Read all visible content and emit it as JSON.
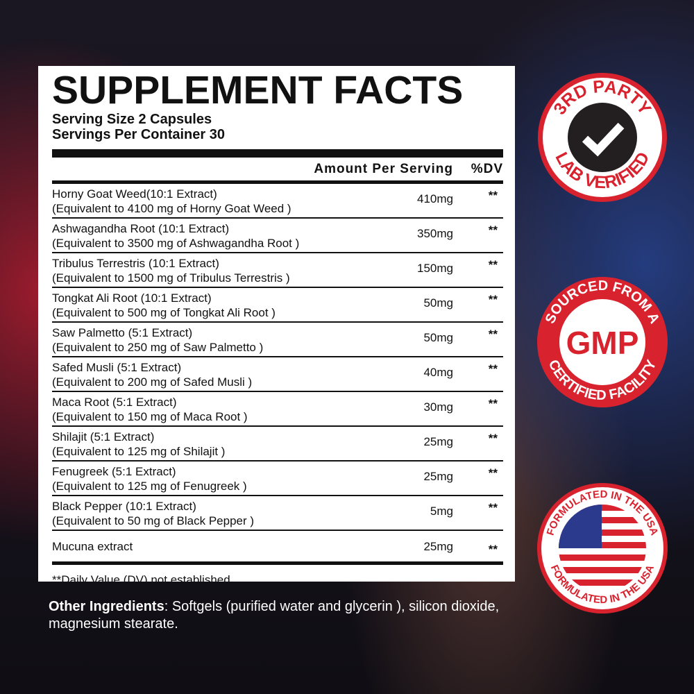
{
  "facts": {
    "title": "SUPPLEMENT FACTS",
    "serving_size": "Serving Size 2 Capsules",
    "servings_per_container": "Servings Per Container 30",
    "header_amount": "Amount Per Serving",
    "header_dv": "%DV",
    "rows": [
      {
        "name": "Horny Goat Weed(10:1 Extract)",
        "equiv": "(Equivalent to 4100 mg of Horny Goat Weed )",
        "amount": "410mg",
        "dv": "**"
      },
      {
        "name": "Ashwagandha Root (10:1 Extract)",
        "equiv": "(Equivalent to 3500 mg of Ashwagandha Root )",
        "amount": "350mg",
        "dv": "**"
      },
      {
        "name": "Tribulus Terrestris (10:1 Extract)",
        "equiv": "(Equivalent to 1500 mg of Tribulus Terrestris )",
        "amount": "150mg",
        "dv": "**"
      },
      {
        "name": "Tongkat Ali Root (10:1 Extract)",
        "equiv": "(Equivalent to 500 mg of Tongkat Ali Root )",
        "amount": "50mg",
        "dv": "**"
      },
      {
        "name": "Saw Palmetto (5:1 Extract)",
        "equiv": "(Equivalent to 250 mg of Saw Palmetto )",
        "amount": "50mg",
        "dv": "**"
      },
      {
        "name": "Safed Musli (5:1 Extract)",
        "equiv": "(Equivalent to 200 mg of Safed Musli )",
        "amount": "40mg",
        "dv": "**"
      },
      {
        "name": "Maca Root (5:1 Extract)",
        "equiv": "(Equivalent to 150 mg of Maca Root )",
        "amount": "30mg",
        "dv": "**"
      },
      {
        "name": "Shilajit (5:1 Extract)",
        "equiv": "(Equivalent to 125 mg of Shilajit )",
        "amount": "25mg",
        "dv": "**"
      },
      {
        "name": "Fenugreek (5:1 Extract)",
        "equiv": "(Equivalent to 125 mg of Fenugreek )",
        "amount": "25mg",
        "dv": "**"
      },
      {
        "name": "Black Pepper (10:1 Extract)",
        "equiv": "(Equivalent to 50 mg of Black Pepper )",
        "amount": "5mg",
        "dv": "**"
      },
      {
        "name": "Mucuna extract",
        "equiv": "",
        "amount": "25mg",
        "dv": "**"
      }
    ],
    "footnote": "**Daily Value (DV) not established"
  },
  "other": {
    "label": "Other Ingredients",
    "text": ":  Softgels (purified water and glycerin ), silicon dioxide, magnesium stearate."
  },
  "badges": {
    "lab": {
      "top": "3RD PARTY",
      "bottom": "LAB VERIFIED",
      "icon": "checkmark-icon"
    },
    "gmp": {
      "top": "SOURCED FROM A",
      "center": "GMP",
      "bottom": "CERTIFIED FACILITY"
    },
    "usa": {
      "top": "FORMULATED IN THE USA",
      "bottom": "FORMULATED IN THE USA",
      "icon": "us-flag-icon"
    }
  },
  "colors": {
    "badge_red": "#d8232f",
    "panel": "#ffffff",
    "text": "#111111"
  }
}
